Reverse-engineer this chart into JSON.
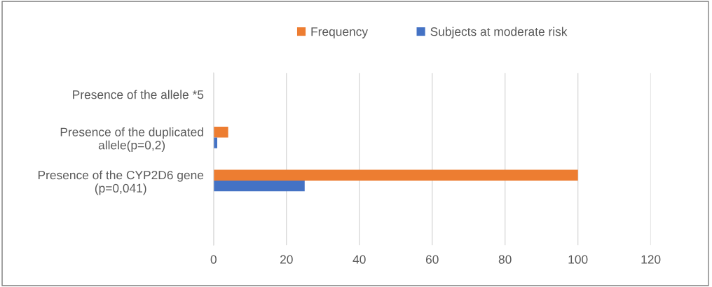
{
  "chart_data": {
    "type": "bar",
    "orientation": "horizontal",
    "categories": [
      "Presence of the allele *5",
      "Presence of the duplicated allele(p=0,2)",
      "Presence of the CYP2D6 gene (p=0,041)",
      null
    ],
    "series": [
      {
        "name": "Frequency",
        "color": "#ed7d31",
        "values": [
          null,
          4,
          100,
          null
        ]
      },
      {
        "name": "Subjects at moderate risk",
        "color": "#4472c4",
        "values": [
          null,
          1,
          25,
          null
        ]
      }
    ],
    "xlim": [
      0,
      120
    ],
    "xticks": [
      0,
      20,
      40,
      60,
      80,
      100,
      120
    ],
    "grid": "x",
    "legend": "top"
  }
}
